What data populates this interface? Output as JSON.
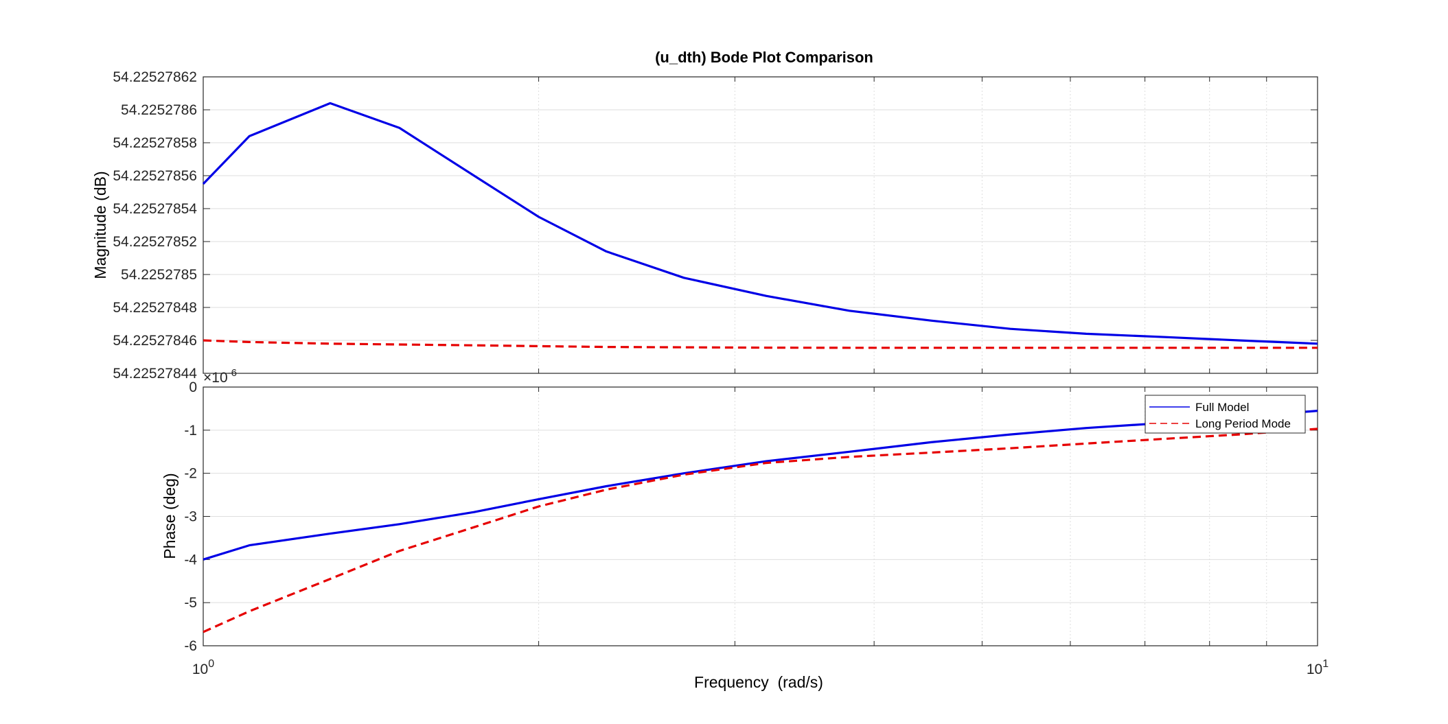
{
  "chart_data": {
    "type": "line",
    "title": "(u_dth) Bode Plot Comparison",
    "xlabel": "Frequency  (rad/s)",
    "x_scale": "log",
    "xlim": [
      1,
      10
    ],
    "x_tick_labels": [
      {
        "base": "10",
        "exp": "0"
      },
      {
        "base": "10",
        "exp": "1"
      }
    ],
    "grid": true,
    "legend": {
      "placement": "top-right of phase panel",
      "entries": [
        "Full Model",
        "Long Period Mode"
      ]
    },
    "colors": {
      "full_model": "#0000e6",
      "long_period": "#e60000",
      "grid": "#dedede",
      "axis": "#262626"
    },
    "x": [
      1.0,
      1.1,
      1.3,
      1.5,
      1.75,
      2.0,
      2.3,
      2.7,
      3.2,
      3.8,
      4.5,
      5.3,
      6.2,
      7.3,
      8.5,
      10.0
    ],
    "panels": [
      {
        "name": "magnitude",
        "ylabel": "Magnitude (dB)",
        "ylim": [
          54.22527844,
          54.22527862
        ],
        "y_ticks": [
          54.22527844,
          54.22527846,
          54.22527848,
          54.2252785,
          54.22527852,
          54.22527854,
          54.22527856,
          54.22527858,
          54.2252786,
          54.22527862
        ],
        "y_tick_labels": [
          "54.22527844",
          "54.22527846",
          "54.22527848",
          "54.2252785",
          "54.22527852",
          "54.22527854",
          "54.22527856",
          "54.22527858",
          "54.2252786",
          "54.22527862"
        ],
        "series": [
          {
            "name": "Full Model",
            "style": "solid",
            "values": [
              54.225278555,
              54.225278584,
              54.225278604,
              54.225278589,
              54.22527856,
              54.225278535,
              54.225278514,
              54.225278498,
              54.225278487,
              54.225278478,
              54.225278472,
              54.225278467,
              54.225278464,
              54.225278462,
              54.22527846,
              54.225278458
            ]
          },
          {
            "name": "Long Period Mode",
            "style": "dashed",
            "values": [
              54.22527846,
              54.225278459,
              54.225278458,
              54.2252784575,
              54.225278457,
              54.2252784565,
              54.225278456,
              54.2252784558,
              54.2252784556,
              54.2252784555,
              54.2252784555,
              54.2252784555,
              54.2252784555,
              54.2252784555,
              54.2252784555,
              54.2252784555
            ]
          }
        ]
      },
      {
        "name": "phase",
        "ylabel": "Phase (deg)",
        "ylim": [
          -6e-06,
          0
        ],
        "y_multiplier": {
          "base": "×10",
          "exp": "-6"
        },
        "y_ticks": [
          0,
          -1,
          -2,
          -3,
          -4,
          -5,
          -6
        ],
        "y_tick_labels": [
          "0",
          "-1",
          "-2",
          "-3",
          "-4",
          "-5",
          "-6"
        ],
        "series": [
          {
            "name": "Full Model",
            "style": "solid",
            "values": [
              -4.0,
              -3.67,
              -3.4,
              -3.18,
              -2.9,
              -2.6,
              -2.3,
              -2.0,
              -1.72,
              -1.5,
              -1.28,
              -1.1,
              -0.95,
              -0.83,
              -0.7,
              -0.55
            ]
          },
          {
            "name": "Long Period Mode",
            "style": "dashed",
            "values": [
              -5.68,
              -5.2,
              -4.45,
              -3.8,
              -3.25,
              -2.77,
              -2.38,
              -2.03,
              -1.76,
              -1.62,
              -1.52,
              -1.42,
              -1.31,
              -1.2,
              -1.1,
              -0.97
            ]
          }
        ]
      }
    ]
  }
}
